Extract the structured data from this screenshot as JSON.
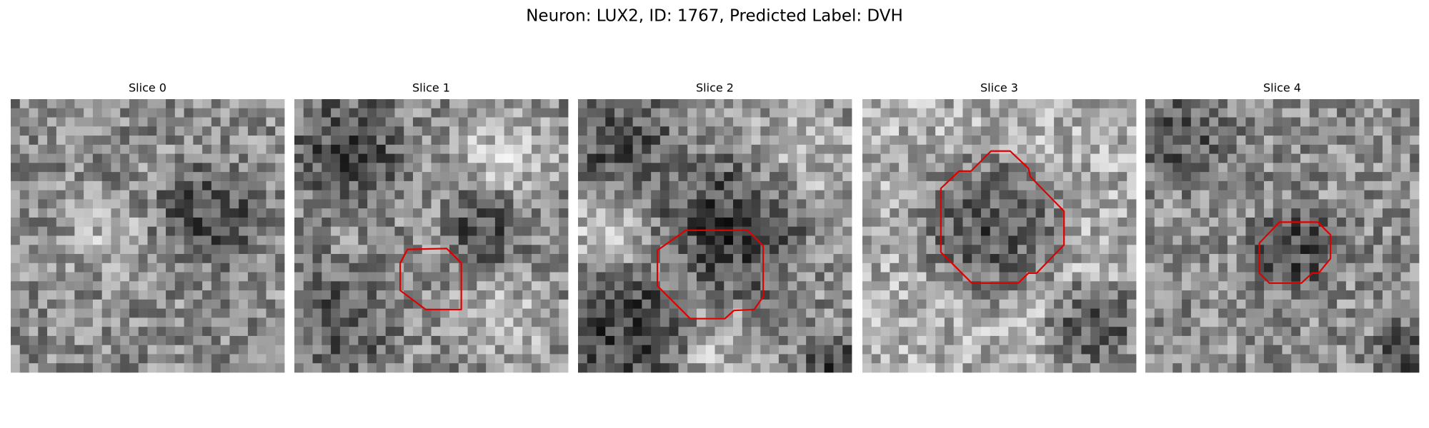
{
  "header": {
    "title": "Neuron: LUX2, ID: 1767, Predicted Label: DVH"
  },
  "panels": [
    {
      "title": "Slice 0"
    },
    {
      "title": "Slice 1"
    },
    {
      "title": "Slice 2"
    },
    {
      "title": "Slice 3"
    },
    {
      "title": "Slice 4"
    }
  ]
}
